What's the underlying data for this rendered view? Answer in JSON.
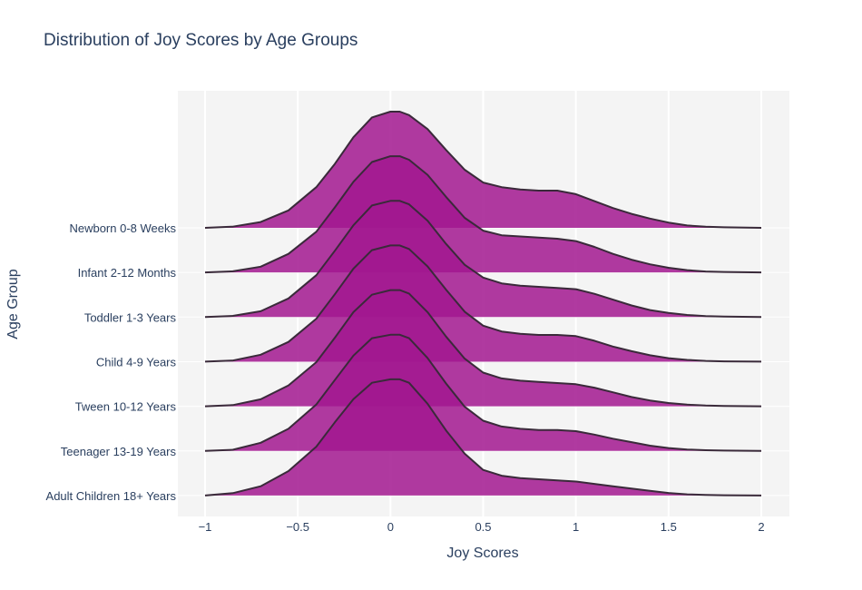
{
  "chart_data": {
    "type": "ridgeline",
    "title": "Distribution of Joy Scores by Age Groups",
    "xlabel": "Joy Scores",
    "ylabel": "Age Group",
    "xlim": [
      -1,
      2
    ],
    "xticks": [
      -1,
      -0.5,
      0,
      0.5,
      1,
      1.5,
      2
    ],
    "xtick_labels": [
      "−1",
      "−0.5",
      "0",
      "0.5",
      "1",
      "1.5",
      "2"
    ],
    "x": [
      -1,
      -0.85,
      -0.7,
      -0.55,
      -0.4,
      -0.3,
      -0.2,
      -0.1,
      0,
      0.05,
      0.1,
      0.2,
      0.3,
      0.4,
      0.5,
      0.6,
      0.7,
      0.8,
      0.9,
      1.0,
      1.1,
      1.2,
      1.3,
      1.4,
      1.5,
      1.6,
      1.7,
      1.8,
      2.0
    ],
    "grid": true,
    "fill_color": "#a2188f",
    "line_color": "#3a2a3a",
    "series": [
      {
        "name": "Newborn 0-8 Weeks",
        "values": [
          0,
          0.01,
          0.05,
          0.15,
          0.35,
          0.55,
          0.78,
          0.95,
          1.0,
          1.0,
          0.97,
          0.85,
          0.67,
          0.5,
          0.39,
          0.35,
          0.33,
          0.32,
          0.32,
          0.29,
          0.23,
          0.17,
          0.12,
          0.08,
          0.045,
          0.02,
          0.01,
          0.005,
          0
        ]
      },
      {
        "name": "Infant 2-12 Months",
        "values": [
          0,
          0.01,
          0.05,
          0.16,
          0.35,
          0.56,
          0.78,
          0.95,
          1.0,
          1.0,
          0.97,
          0.84,
          0.65,
          0.47,
          0.36,
          0.32,
          0.31,
          0.3,
          0.29,
          0.27,
          0.22,
          0.16,
          0.11,
          0.07,
          0.04,
          0.02,
          0.008,
          0.004,
          0
        ]
      },
      {
        "name": "Toddler 1-3 Years",
        "values": [
          0,
          0.01,
          0.05,
          0.16,
          0.36,
          0.57,
          0.79,
          0.96,
          1.0,
          1.0,
          0.97,
          0.83,
          0.63,
          0.45,
          0.34,
          0.29,
          0.27,
          0.26,
          0.25,
          0.24,
          0.2,
          0.15,
          0.1,
          0.06,
          0.035,
          0.018,
          0.008,
          0.004,
          0
        ]
      },
      {
        "name": "Child 4-9 Years",
        "values": [
          0,
          0.01,
          0.06,
          0.17,
          0.37,
          0.58,
          0.8,
          0.96,
          1.0,
          1.0,
          0.97,
          0.82,
          0.62,
          0.43,
          0.31,
          0.26,
          0.24,
          0.23,
          0.23,
          0.22,
          0.18,
          0.13,
          0.09,
          0.055,
          0.03,
          0.015,
          0.007,
          0.003,
          0
        ]
      },
      {
        "name": "Tween 10-12 Years",
        "values": [
          0,
          0.01,
          0.06,
          0.18,
          0.38,
          0.59,
          0.81,
          0.96,
          1.0,
          1.0,
          0.97,
          0.81,
          0.6,
          0.41,
          0.29,
          0.24,
          0.22,
          0.21,
          0.2,
          0.19,
          0.16,
          0.12,
          0.08,
          0.05,
          0.028,
          0.014,
          0.006,
          0.003,
          0
        ]
      },
      {
        "name": "Teenager 13-19 Years",
        "values": [
          0,
          0.01,
          0.07,
          0.19,
          0.4,
          0.61,
          0.82,
          0.97,
          1.0,
          1.0,
          0.97,
          0.8,
          0.58,
          0.38,
          0.26,
          0.21,
          0.19,
          0.18,
          0.18,
          0.17,
          0.14,
          0.105,
          0.075,
          0.045,
          0.025,
          0.012,
          0.006,
          0.003,
          0
        ]
      },
      {
        "name": "Adult Children 18+ Years",
        "values": [
          0,
          0.02,
          0.08,
          0.21,
          0.42,
          0.63,
          0.83,
          0.97,
          1.0,
          1.0,
          0.97,
          0.79,
          0.56,
          0.36,
          0.22,
          0.17,
          0.15,
          0.14,
          0.13,
          0.12,
          0.1,
          0.08,
          0.06,
          0.04,
          0.022,
          0.01,
          0.005,
          0.002,
          0
        ]
      }
    ]
  }
}
